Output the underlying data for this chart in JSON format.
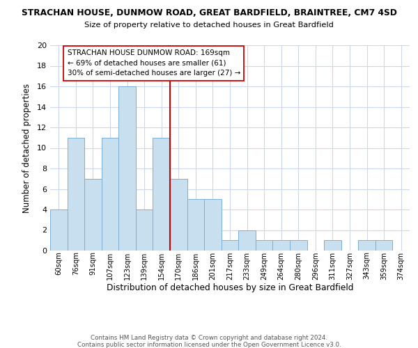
{
  "title": "STRACHAN HOUSE, DUNMOW ROAD, GREAT BARDFIELD, BRAINTREE, CM7 4SD",
  "subtitle": "Size of property relative to detached houses in Great Bardfield",
  "xlabel": "Distribution of detached houses by size in Great Bardfield",
  "ylabel": "Number of detached properties",
  "bar_labels": [
    "60sqm",
    "76sqm",
    "91sqm",
    "107sqm",
    "123sqm",
    "139sqm",
    "154sqm",
    "170sqm",
    "186sqm",
    "201sqm",
    "217sqm",
    "233sqm",
    "249sqm",
    "264sqm",
    "280sqm",
    "296sqm",
    "311sqm",
    "327sqm",
    "343sqm",
    "359sqm",
    "374sqm"
  ],
  "bar_values": [
    4,
    11,
    7,
    11,
    16,
    4,
    11,
    7,
    5,
    5,
    1,
    2,
    1,
    1,
    1,
    0,
    1,
    0,
    1,
    1,
    0
  ],
  "bar_color": "#c8dff0",
  "bar_edge_color": "#7bafd4",
  "vline_color": "#cc0000",
  "annotation_title": "STRACHAN HOUSE DUNMOW ROAD: 169sqm",
  "annotation_line1": "← 69% of detached houses are smaller (61)",
  "annotation_line2": "30% of semi-detached houses are larger (27) →",
  "annotation_box_color": "#ffffff",
  "annotation_box_edge": "#cc0000",
  "ylim": [
    0,
    20
  ],
  "yticks": [
    0,
    2,
    4,
    6,
    8,
    10,
    12,
    14,
    16,
    18,
    20
  ],
  "footer1": "Contains HM Land Registry data © Crown copyright and database right 2024.",
  "footer2": "Contains public sector information licensed under the Open Government Licence v3.0.",
  "bg_color": "#ffffff",
  "grid_color": "#ccd8e8"
}
